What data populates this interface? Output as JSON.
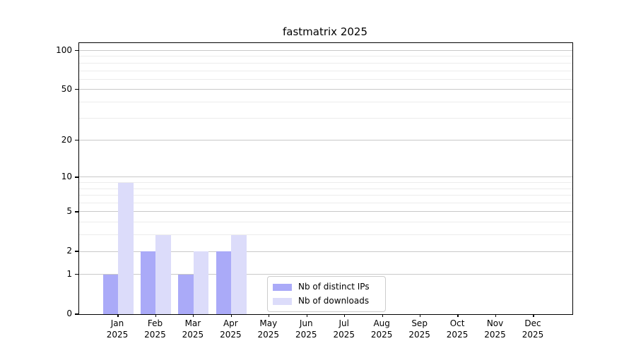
{
  "chart_data": {
    "type": "bar",
    "title": "fastmatrix 2025",
    "categories": [
      "Jan",
      "Feb",
      "Mar",
      "Apr",
      "May",
      "Jun",
      "Jul",
      "Aug",
      "Sep",
      "Oct",
      "Nov",
      "Dec"
    ],
    "category_year": "2025",
    "series": [
      {
        "name": "Nb of distinct IPs",
        "color": "#aaaaf8",
        "values": [
          1,
          2,
          1,
          2,
          0,
          0,
          0,
          0,
          0,
          0,
          0,
          0
        ]
      },
      {
        "name": "Nb of downloads",
        "color": "#dcdcfa",
        "values": [
          9,
          3,
          2,
          3,
          0,
          0,
          0,
          0,
          0,
          0,
          0,
          0
        ]
      }
    ],
    "yscale": "log1p",
    "ylim": [
      0,
      114
    ],
    "yticks_major": [
      0,
      1,
      2,
      5,
      10,
      20,
      50,
      100
    ],
    "yticks_minor": [
      3,
      4,
      6,
      7,
      8,
      9,
      30,
      40,
      60,
      70,
      80,
      90
    ],
    "grid": "horizontal",
    "legend_position": "inside-bottom-center",
    "colors": {
      "axis": "#000000",
      "grid_major": "#c9c9c9",
      "grid_minor": "#ececec",
      "background": "#ffffff"
    }
  }
}
